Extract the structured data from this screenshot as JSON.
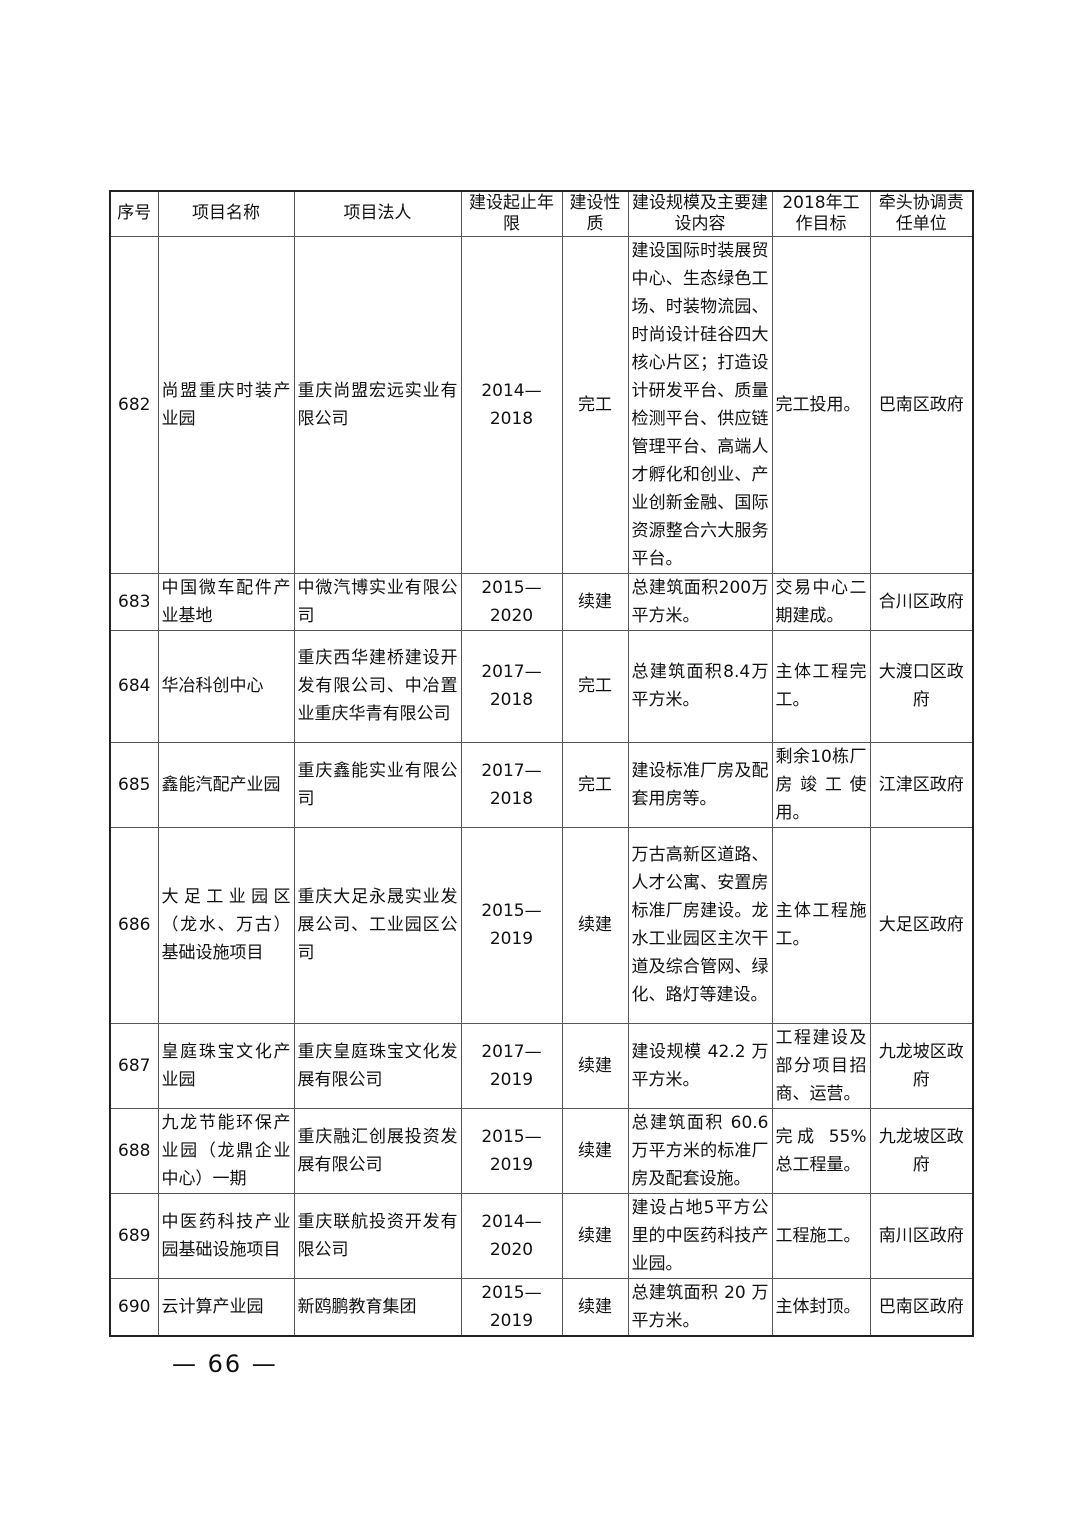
{
  "headers": [
    "序号",
    "项目名称",
    "项目法人",
    "建设起止年限",
    "建设性质",
    "建设规模及主要建设内容",
    "2018年工作目标",
    "牵头协调责任单位"
  ],
  "rows": [
    {
      "no": "682",
      "name": "尚盟重庆时装产业园",
      "owner": "重庆尚盟宏远实业有限公司",
      "period": "2014—2018",
      "type": "完工",
      "scale": "建设国际时装展贸中心、生态绿色工场、时装物流园、时尚设计硅谷四大核心片区；打造设计研发平台、质量检测平台、供应链管理平台、高端人才孵化和创业、产业创新金融、国际资源整合六大服务平台。",
      "goal": "完工投用。",
      "unit": "巴南区政府"
    },
    {
      "no": "683",
      "name": "中国微车配件产业基地",
      "owner": "中微汽博实业有限公司",
      "period": "2015—2020",
      "type": "续建",
      "scale": "总建筑面积200万平方米。",
      "goal": "交易中心二期建成。",
      "unit": "合川区政府"
    },
    {
      "no": "684",
      "name": "华冶科创中心",
      "owner": "重庆西华建桥建设开发有限公司、中冶置业重庆华青有限公司",
      "period": "2017—2018",
      "type": "完工",
      "scale": "总建筑面积8.4万平方米。",
      "goal": "主体工程完工。",
      "unit": "大渡口区政府"
    },
    {
      "no": "685",
      "name": "鑫能汽配产业园",
      "owner": "重庆鑫能实业有限公司",
      "period": "2017—2018",
      "type": "完工",
      "scale": "建设标准厂房及配套用房等。",
      "goal": "剩余10栋厂房竣工使用。",
      "unit": "江津区政府"
    },
    {
      "no": "686",
      "name": "大足工业园区（龙水、万古）基础设施项目",
      "owner": "重庆大足永晟实业发展公司、工业园区公司",
      "period": "2015—2019",
      "type": "续建",
      "scale": "万古高新区道路、人才公寓、安置房标准厂房建设。龙水工业园区主次干道及综合管网、绿化、路灯等建设。",
      "goal": "主体工程施工。",
      "unit": "大足区政府"
    },
    {
      "no": "687",
      "name": "皇庭珠宝文化产业园",
      "owner": "重庆皇庭珠宝文化发展有限公司",
      "period": "2017—2019",
      "type": "续建",
      "scale": "建设规模 42.2 万平方米。",
      "goal": "工程建设及部分项目招商、运营。",
      "unit": "九龙坡区政府"
    },
    {
      "no": "688",
      "name": "九龙节能环保产业园（龙鼎企业中心）一期",
      "owner": "重庆融汇创展投资发展有限公司",
      "period": "2015—2019",
      "type": "续建",
      "scale": "总建筑面积 60.6 万平方米的标准厂房及配套设施。",
      "goal": "完成 55%总工程量。",
      "unit": "九龙坡区政府"
    },
    {
      "no": "689",
      "name": "中医药科技产业园基础设施项目",
      "owner": "重庆联航投资开发有限公司",
      "period": "2014—2020",
      "type": "续建",
      "scale": "建设占地5平方公里的中医药科技产业园。",
      "goal": "工程施工。",
      "unit": "南川区政府"
    },
    {
      "no": "690",
      "name": "云计算产业园",
      "owner": "新鸥鹏教育集团",
      "period": "2015—2019",
      "type": "续建",
      "scale": "总建筑面积 20 万平方米。",
      "goal": "主体封顶。",
      "unit": "巴南区政府"
    }
  ],
  "page_number": "— 66 —"
}
